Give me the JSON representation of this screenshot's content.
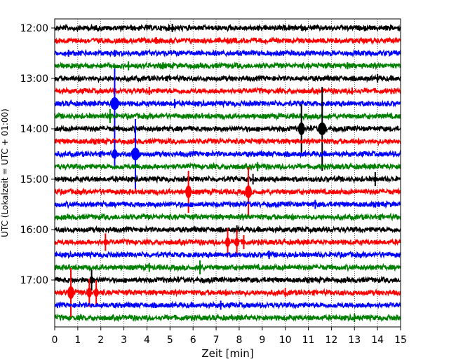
{
  "chart_data": {
    "type": "line",
    "title": "",
    "xlabel": "Zeit  [min]",
    "ylabel": "UTC (Lokalzeit = UTC + 01:00)",
    "xlim": [
      0,
      15
    ],
    "x_ticks": [
      0,
      1,
      2,
      3,
      4,
      5,
      6,
      7,
      8,
      9,
      10,
      11,
      12,
      13,
      14,
      15
    ],
    "y_tick_labels": [
      "12:00",
      "13:00",
      "14:00",
      "15:00",
      "16:00",
      "17:00"
    ],
    "y_tick_rows": [
      0,
      4,
      8,
      12,
      16,
      20
    ],
    "grid": "vertical dotted lines at each minute",
    "legend": "none",
    "trace_interval_minutes": 15,
    "trace_start": "12:00",
    "trace_count": 24,
    "trace_colors": [
      "#000000",
      "#ff0000",
      "#0000ff",
      "#008000"
    ],
    "events": [
      {
        "trace": 0,
        "minute": 5.1,
        "amplitude": 1.2
      },
      {
        "trace": 1,
        "minute": 4.4,
        "amplitude": 1.0
      },
      {
        "trace": 2,
        "minute": 0.6,
        "amplitude": 1.0
      },
      {
        "trace": 2,
        "minute": 2.6,
        "amplitude": 1.0
      },
      {
        "trace": 3,
        "minute": 3.2,
        "amplitude": 1.3
      },
      {
        "trace": 3,
        "minute": 4.7,
        "amplitude": 1.0
      },
      {
        "trace": 3,
        "minute": 12.7,
        "amplitude": 1.0
      },
      {
        "trace": 4,
        "minute": 14.0,
        "amplitude": 1.2
      },
      {
        "trace": 5,
        "minute": 4.1,
        "amplitude": 1.2
      },
      {
        "trace": 5,
        "minute": 12.9,
        "amplitude": 1.0
      },
      {
        "trace": 6,
        "minute": 2.6,
        "amplitude": 10.0
      },
      {
        "trace": 6,
        "minute": 5.2,
        "amplitude": 1.3
      },
      {
        "trace": 7,
        "minute": 2.4,
        "amplitude": 2.0
      },
      {
        "trace": 8,
        "minute": 10.7,
        "amplitude": 7.0
      },
      {
        "trace": 8,
        "minute": 11.6,
        "amplitude": 12.0
      },
      {
        "trace": 10,
        "minute": 3.5,
        "amplitude": 10.0
      },
      {
        "trace": 10,
        "minute": 2.6,
        "amplitude": 4.0
      },
      {
        "trace": 11,
        "minute": 8.8,
        "amplitude": 1.3
      },
      {
        "trace": 12,
        "minute": 13.9,
        "amplitude": 2.0
      },
      {
        "trace": 12,
        "minute": 8.6,
        "amplitude": 1.5
      },
      {
        "trace": 13,
        "minute": 5.8,
        "amplitude": 6.0
      },
      {
        "trace": 13,
        "minute": 8.4,
        "amplitude": 7.0
      },
      {
        "trace": 14,
        "minute": 11.3,
        "amplitude": 1.3
      },
      {
        "trace": 16,
        "minute": 7.9,
        "amplitude": 1.2
      },
      {
        "trace": 17,
        "minute": 2.2,
        "amplitude": 2.5
      },
      {
        "trace": 17,
        "minute": 7.5,
        "amplitude": 4.0
      },
      {
        "trace": 17,
        "minute": 7.9,
        "amplitude": 3.5
      },
      {
        "trace": 17,
        "minute": 8.2,
        "amplitude": 2.0
      },
      {
        "trace": 18,
        "minute": 9.3,
        "amplitude": 1.2
      },
      {
        "trace": 19,
        "minute": 6.3,
        "amplitude": 2.0
      },
      {
        "trace": 19,
        "minute": 4.1,
        "amplitude": 1.3
      },
      {
        "trace": 20,
        "minute": 1.6,
        "amplitude": 3.0
      },
      {
        "trace": 21,
        "minute": 0.7,
        "amplitude": 7.0
      },
      {
        "trace": 21,
        "minute": 1.5,
        "amplitude": 4.0
      },
      {
        "trace": 21,
        "minute": 1.8,
        "amplitude": 3.5
      },
      {
        "trace": 21,
        "minute": 10.0,
        "amplitude": 1.3
      },
      {
        "trace": 22,
        "minute": 7.2,
        "amplitude": 1.3
      },
      {
        "trace": 23,
        "minute": 13.0,
        "amplitude": 1.2
      }
    ]
  }
}
